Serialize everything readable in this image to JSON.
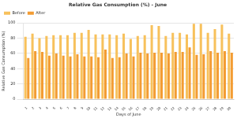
{
  "chart_data": {
    "type": "bar",
    "title": "Relative Gas Consumption (%) - June",
    "x_label": "Days of June",
    "y_label": "Relative Gas Consumption (%)",
    "categories": [
      "1",
      "2",
      "3",
      "4",
      "5",
      "6",
      "7",
      "8",
      "9",
      "10",
      "11",
      "12",
      "13",
      "14",
      "15",
      "16",
      "17",
      "18",
      "19",
      "20",
      "21",
      "22",
      "23",
      "24",
      "25",
      "26",
      "27",
      "28",
      "29",
      "30"
    ],
    "series": [
      {
        "name": "Before",
        "color": "#f7c15c",
        "values": [
          82,
          86,
          80,
          83,
          84,
          84,
          84,
          87,
          87,
          91,
          85,
          85,
          85,
          84,
          86,
          79,
          83,
          84,
          97,
          96,
          83,
          87,
          87,
          85,
          99,
          99,
          87,
          92,
          98,
          86
        ]
      },
      {
        "name": "After",
        "color": "#f39c33",
        "values": [
          54,
          63,
          62,
          57,
          60,
          57,
          56,
          59,
          56,
          56,
          55,
          65,
          54,
          55,
          60,
          56,
          61,
          60,
          61,
          61,
          60,
          62,
          62,
          68,
          58,
          59,
          63,
          61,
          63,
          61
        ]
      }
    ],
    "ylim": [
      0,
      100
    ],
    "yticks": [
      0,
      20,
      40,
      60,
      80,
      100
    ],
    "grid": true,
    "legend": "upper left"
  }
}
